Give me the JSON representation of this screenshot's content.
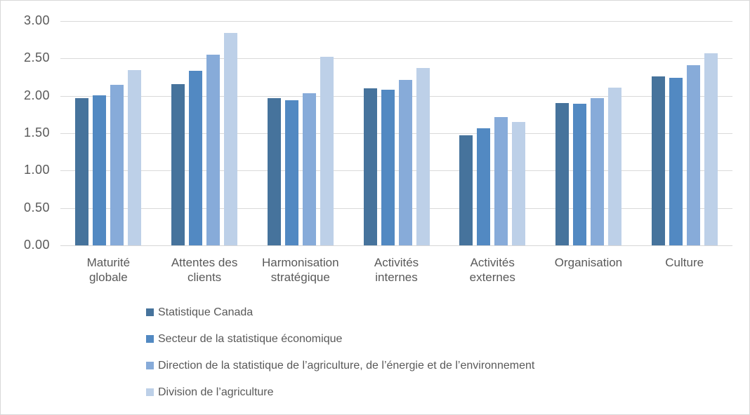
{
  "chart_data": {
    "type": "bar",
    "title": "",
    "xlabel": "",
    "ylabel": "",
    "categories": [
      "Maturité globale",
      "Attentes des clients",
      "Harmonisation stratégique",
      "Activités internes",
      "Activités externes",
      "Organisation",
      "Culture"
    ],
    "series": [
      {
        "name": "Statistique Canada",
        "color": "#46739C",
        "values": [
          1.97,
          2.16,
          1.97,
          2.1,
          1.47,
          1.9,
          2.26
        ]
      },
      {
        "name": "Secteur de la statistique économique",
        "color": "#5289C2",
        "values": [
          2.01,
          2.33,
          1.94,
          2.08,
          1.57,
          1.89,
          2.24
        ]
      },
      {
        "name": "Direction de la statistique de l’agriculture, de l’énergie et de l’environnement",
        "color": "#87ABD9",
        "values": [
          2.15,
          2.55,
          2.03,
          2.21,
          1.72,
          1.97,
          2.41
        ]
      },
      {
        "name": "Division de l’agriculture",
        "color": "#BDD0E8",
        "values": [
          2.34,
          2.84,
          2.52,
          2.37,
          1.65,
          2.11,
          2.57
        ]
      }
    ],
    "ylim": [
      0,
      3
    ],
    "yticks": [
      "0.00",
      "0.50",
      "1.00",
      "1.50",
      "2.00",
      "2.50",
      "3.00"
    ],
    "grid": true,
    "legend_position": "bottom-left"
  },
  "styles": {
    "text_color": "#595959",
    "gridline_color": "#D9D9D9",
    "axis_line_color": "#D6D6D6",
    "frame_border_color": "#D8D8D8",
    "background": "#FFFFFF"
  }
}
